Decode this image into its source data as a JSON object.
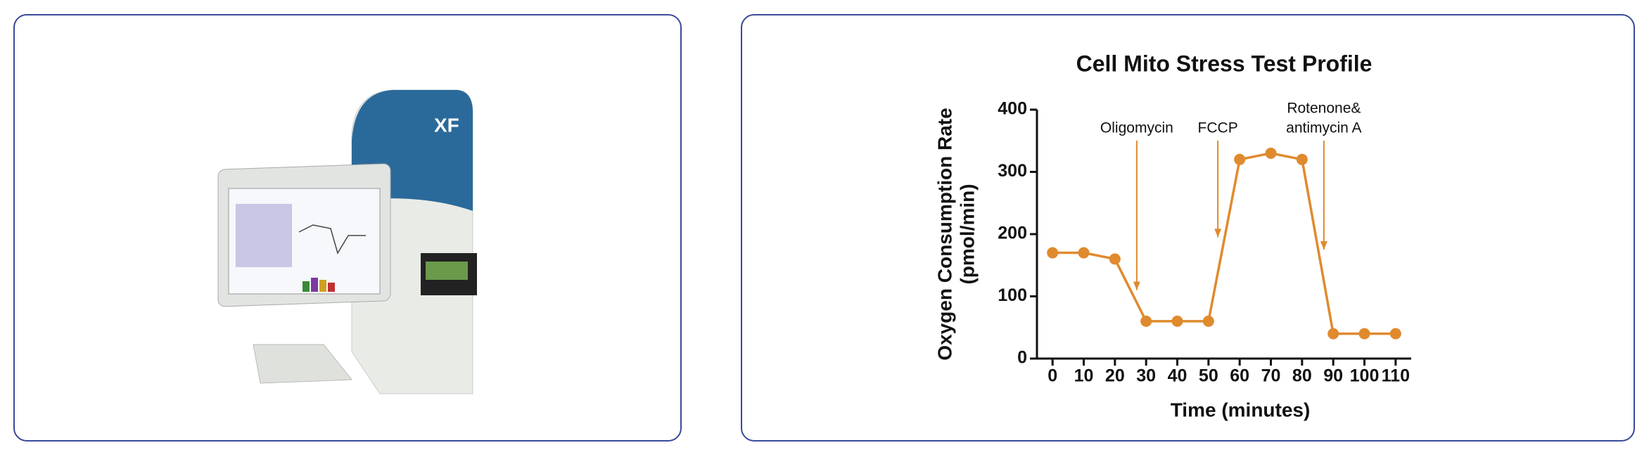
{
  "device_label": "XF",
  "chart_data": {
    "type": "line",
    "title": "Cell Mito Stress Test Profile",
    "ylabel": [
      "Oxygen Consumption Rate",
      "(pmol/min)"
    ],
    "xlabel": "Time (minutes)",
    "x": [
      0,
      10,
      20,
      30,
      40,
      50,
      60,
      70,
      80,
      90,
      100,
      110
    ],
    "series": [
      {
        "color": "#e08a2e",
        "values": [
          170,
          170,
          160,
          60,
          60,
          60,
          320,
          330,
          320,
          40,
          40,
          40
        ]
      }
    ],
    "xlim": [
      -5,
      115
    ],
    "xticks": [
      0,
      10,
      20,
      30,
      40,
      50,
      60,
      70,
      80,
      90,
      100,
      110
    ],
    "ylim": [
      0,
      400
    ],
    "yticks": [
      0,
      100,
      200,
      300,
      400
    ],
    "annotations": [
      {
        "lines": [
          "Oligomycin"
        ],
        "x": 27,
        "y": 110
      },
      {
        "lines": [
          "FCCP"
        ],
        "x": 53,
        "y": 195
      },
      {
        "lines": [
          "Rotenone&",
          "antimycin A"
        ],
        "x": 87,
        "y": 175
      }
    ]
  }
}
